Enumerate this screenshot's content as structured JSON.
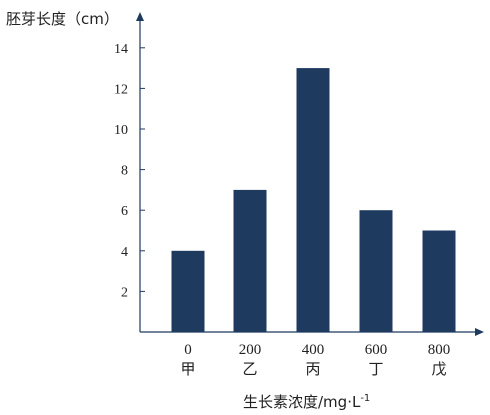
{
  "chart_data": {
    "type": "bar",
    "ylabel": "胚芽长度（cm）",
    "xlabel_main": "生长素浓度/mg·L",
    "xlabel_sup": "-1",
    "categories": [
      "0",
      "200",
      "400",
      "600",
      "800"
    ],
    "category_names": [
      "甲",
      "乙",
      "丙",
      "丁",
      "戊"
    ],
    "values": [
      4,
      7,
      13,
      6,
      5
    ],
    "y_ticks": [
      2,
      4,
      6,
      8,
      10,
      12,
      14
    ],
    "ylim": [
      0,
      15
    ],
    "bar_color": "#1f3a5f",
    "axis_color": "#1f3a5f",
    "grid": false
  }
}
